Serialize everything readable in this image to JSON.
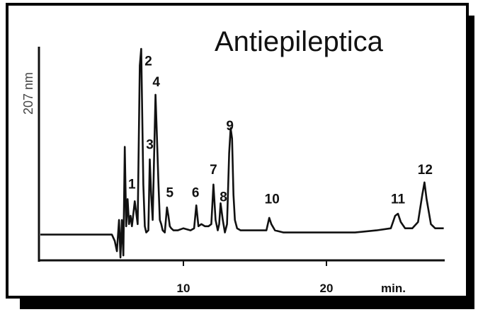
{
  "chart_data": {
    "type": "line",
    "title": "Antiepileptica",
    "ylabel": "207 nm",
    "xlabel": "min.",
    "xlim": [
      0,
      28.5
    ],
    "ylim": [
      0,
      100
    ],
    "x_ticks": [
      10,
      20
    ],
    "grid": false,
    "legend": "none",
    "line_color": "#111111",
    "frame_shadow_color": "#000000",
    "series": [
      {
        "x": [
          0,
          5.0,
          5.2,
          5.35,
          5.5,
          5.6,
          5.7,
          5.8,
          5.9,
          6.0,
          6.1,
          6.2,
          6.3,
          6.4,
          6.6,
          6.8,
          6.95,
          7.05,
          7.2,
          7.3,
          7.4,
          7.55,
          7.65,
          7.75,
          7.85,
          7.95,
          8.05,
          8.15,
          8.25,
          8.35,
          8.45,
          8.55,
          8.7,
          8.85,
          8.95,
          9.05,
          9.15,
          9.3,
          9.6,
          10.0,
          10.5,
          10.75,
          10.9,
          11.05,
          11.25,
          11.5,
          11.75,
          11.95,
          12.1,
          12.25,
          12.4,
          12.5,
          12.6,
          12.75,
          12.9,
          13.05,
          13.2,
          13.3,
          13.4,
          13.5,
          13.6,
          13.75,
          14.0,
          15.0,
          15.8,
          16.0,
          16.15,
          16.4,
          17.0,
          18.0,
          19.0,
          20.5,
          22.0,
          23.5,
          24.5,
          24.8,
          25.0,
          25.2,
          25.5,
          26.0,
          26.4,
          26.7,
          26.85,
          27.0,
          27.3,
          27.6,
          28.2
        ],
        "y": [
          11,
          11,
          8,
          3,
          18,
          0,
          18,
          1,
          53,
          15,
          28,
          16,
          20,
          15,
          27,
          16,
          92,
          100,
          35,
          15,
          12,
          13,
          47,
          30,
          18,
          48,
          78,
          58,
          36,
          18,
          16,
          13,
          12,
          24,
          20,
          15,
          14,
          13,
          13,
          14,
          13,
          14,
          25,
          15,
          16,
          15,
          15,
          16,
          35,
          18,
          13,
          16,
          26,
          18,
          12,
          16,
          50,
          62,
          57,
          30,
          18,
          14,
          13,
          13,
          13,
          19,
          16,
          13,
          12,
          12,
          12,
          12,
          12,
          13,
          14,
          20,
          21,
          17,
          14,
          14,
          17,
          30,
          36,
          28,
          16,
          14,
          14
        ]
      }
    ],
    "peak_labels": [
      {
        "text": "1",
        "x": 6.4,
        "y": 33
      },
      {
        "text": "2",
        "x": 7.55,
        "y": 92
      },
      {
        "text": "3",
        "x": 7.65,
        "y": 52
      },
      {
        "text": "4",
        "x": 8.1,
        "y": 82
      },
      {
        "text": "5",
        "x": 9.05,
        "y": 29
      },
      {
        "text": "6",
        "x": 10.85,
        "y": 29
      },
      {
        "text": "7",
        "x": 12.1,
        "y": 40
      },
      {
        "text": "8",
        "x": 12.8,
        "y": 27
      },
      {
        "text": "9",
        "x": 13.25,
        "y": 61
      },
      {
        "text": "10",
        "x": 16.2,
        "y": 26
      },
      {
        "text": "11",
        "x": 25.0,
        "y": 26
      },
      {
        "text": "12",
        "x": 26.9,
        "y": 40
      }
    ]
  }
}
